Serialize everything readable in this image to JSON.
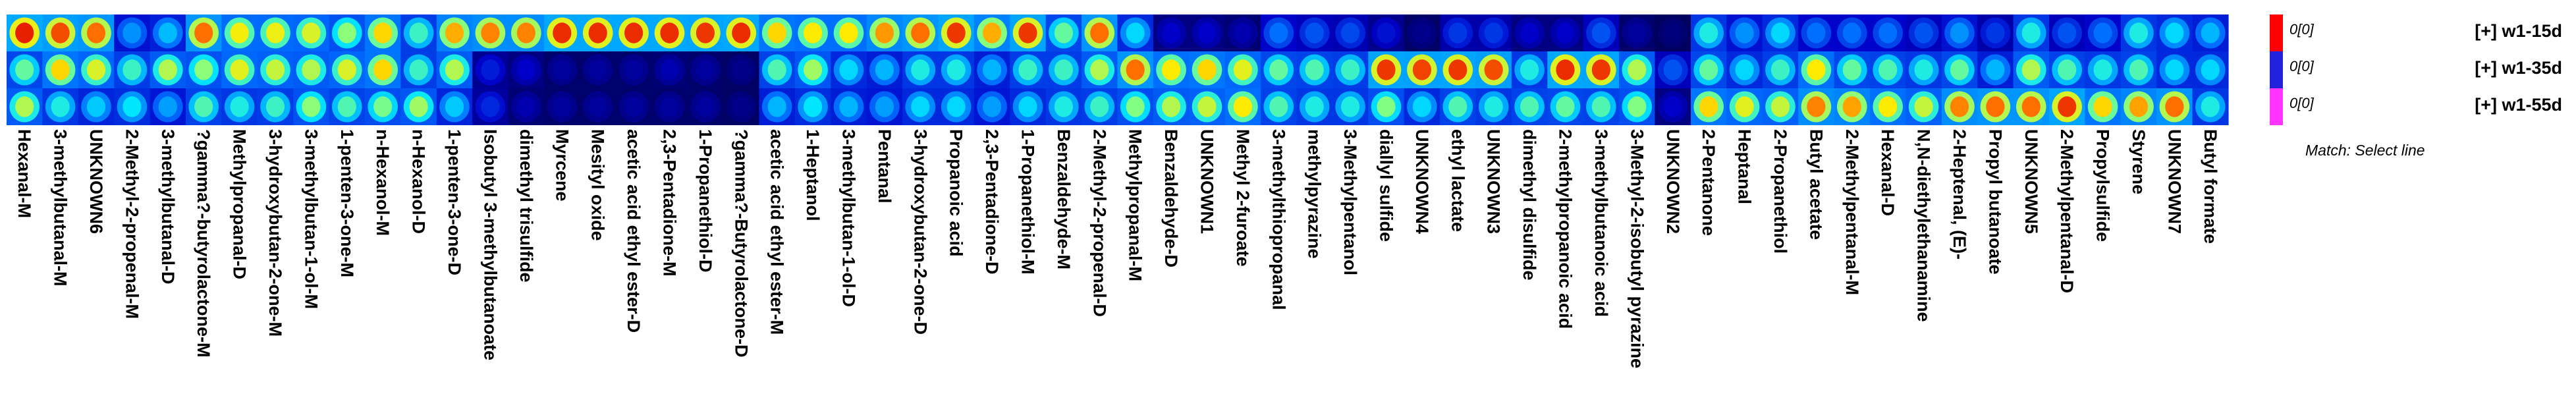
{
  "chart_data": {
    "type": "heatmap",
    "subtitle": "Match: Select line",
    "samples": [
      {
        "name": "[+] w1-15d",
        "scale_label": "0[0]",
        "color": "#ff0000"
      },
      {
        "name": "[+] w1-35d",
        "scale_label": "0[0]",
        "color": "#2222dd"
      },
      {
        "name": "[+] w1-55d",
        "scale_label": "0[0]",
        "color": "#ff33ff"
      }
    ],
    "categories": [
      "Hexanal-M",
      "3-methylbutanal-M",
      "UNKNOWN6",
      "2-Methyl-2-propenal-M",
      "3-methylbutanal-D",
      "?gamma?-butyrolactone-M",
      "Methylpropanal-D",
      "3-hydroxybutan-2-one-M",
      "3-methylbutan-1-ol-M",
      "1-penten-3-one-M",
      "n-Hexanol-M",
      "n-Hexanol-D",
      "1-penten-3-one-D",
      "Isobutyl 3-methylbutanoate",
      "dimethyl trisulfide",
      "Myrcene",
      "Mesityl oxide",
      "acetic acid ethyl ester-D",
      "2,3-Pentadione-M",
      "1-Propanethiol-D",
      "?gamma?-Butyrolactone-D",
      "acetic acid ethyl ester-M",
      "1-Heptanol",
      "3-methylbutan-1-ol-D",
      "Pentanal",
      "3-hydroxybutan-2-one-D",
      "Propanoic acid",
      "2,3-Pentadione-D",
      "1-Propanethiol-M",
      "Benzaldehyde-M",
      "2-Methyl-2-propenal-D",
      "Methylpropanal-M",
      "Benzaldehyde-D",
      "UNKNOWN1",
      "Methyl 2-furoate",
      "3-methylthiopropanal",
      "methylpyrazine",
      "3-Methylpentanol",
      "diallyl sulfide",
      "UNKNOWN4",
      "ethyl lactate",
      "UNKNOWN3",
      "dimethyl disulfide",
      "2-methylpropanoic acid",
      "3-methylbutanoic acid",
      "3-Methyl-2-isobutyl pyrazine",
      "UNKNOWN2",
      "2-Pentanone",
      "Heptanal",
      "2-Propanethiol",
      "Butyl acetate",
      "2-Methylpentanal-M",
      "Hexanal-D",
      "N,N-diethylethanamine",
      "2-Heptenal, (E)-",
      "Propyl butanoate",
      "UNKNOWN5",
      "2-Methylpentanal-D",
      "Propylsulfide",
      "Styrene",
      "UNKNOWN7",
      "Butyl formate"
    ],
    "intensity_scale": "0 = dark blue (low), 1 = red (high)",
    "values": [
      [
        0.97,
        0.93,
        0.9,
        0.4,
        0.46,
        0.9,
        0.77,
        0.76,
        0.74,
        0.66,
        0.8,
        0.58,
        0.84,
        0.88,
        0.88,
        0.96,
        0.96,
        0.96,
        0.96,
        0.95,
        0.96,
        0.8,
        0.78,
        0.78,
        0.86,
        0.9,
        0.95,
        0.84,
        0.95,
        0.62,
        0.9,
        0.5,
        0.15,
        0.15,
        0.12,
        0.35,
        0.3,
        0.28,
        0.18,
        0.08,
        0.25,
        0.25,
        0.15,
        0.15,
        0.3,
        0.1,
        0.06,
        0.55,
        0.4,
        0.5,
        0.35,
        0.35,
        0.35,
        0.3,
        0.4,
        0.25,
        0.55,
        0.3,
        0.35,
        0.55,
        0.5,
        0.45
      ],
      [
        0.62,
        0.8,
        0.74,
        0.58,
        0.7,
        0.66,
        0.75,
        0.72,
        0.7,
        0.74,
        0.8,
        0.58,
        0.7,
        0.2,
        0.15,
        0.1,
        0.1,
        0.1,
        0.12,
        0.1,
        0.08,
        0.6,
        0.68,
        0.5,
        0.45,
        0.55,
        0.55,
        0.45,
        0.58,
        0.58,
        0.7,
        0.9,
        0.78,
        0.8,
        0.75,
        0.62,
        0.6,
        0.58,
        0.95,
        0.94,
        0.95,
        0.93,
        0.55,
        0.96,
        0.95,
        0.7,
        0.3,
        0.62,
        0.5,
        0.58,
        0.78,
        0.62,
        0.6,
        0.55,
        0.62,
        0.45,
        0.7,
        0.6,
        0.55,
        0.6,
        0.5,
        0.5
      ],
      [
        0.7,
        0.55,
        0.48,
        0.52,
        0.42,
        0.6,
        0.55,
        0.58,
        0.66,
        0.6,
        0.64,
        0.68,
        0.48,
        0.22,
        0.12,
        0.1,
        0.1,
        0.1,
        0.1,
        0.1,
        0.08,
        0.45,
        0.52,
        0.45,
        0.42,
        0.5,
        0.5,
        0.42,
        0.5,
        0.55,
        0.58,
        0.65,
        0.7,
        0.72,
        0.78,
        0.6,
        0.55,
        0.55,
        0.65,
        0.5,
        0.6,
        0.55,
        0.6,
        0.62,
        0.6,
        0.65,
        0.15,
        0.8,
        0.75,
        0.72,
        0.88,
        0.85,
        0.78,
        0.72,
        0.88,
        0.9,
        0.9,
        0.95,
        0.8,
        0.85,
        0.9,
        0.55
      ]
    ]
  }
}
